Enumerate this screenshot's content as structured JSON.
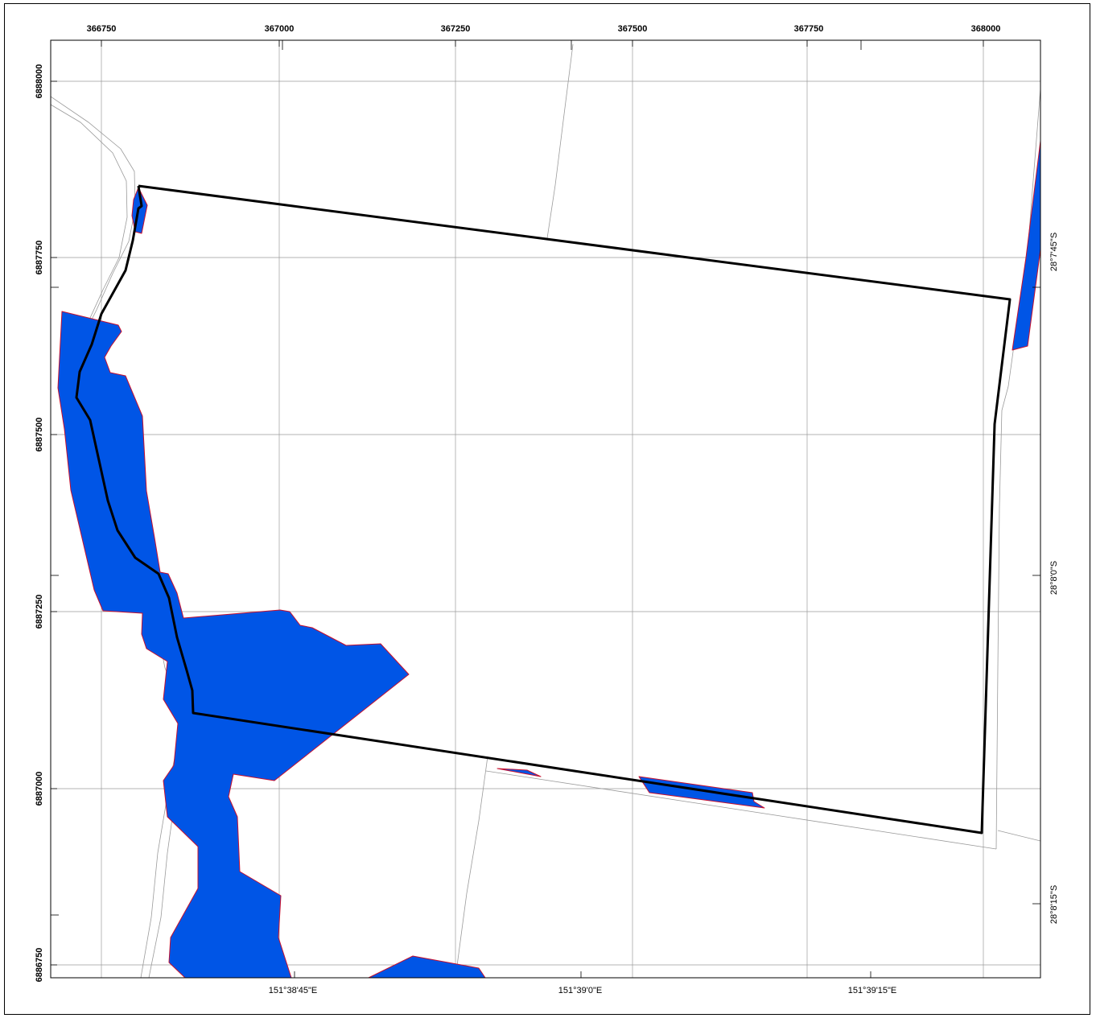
{
  "map": {
    "colors": {
      "water_fill": "#0055e6",
      "water_outline": "#c8102e",
      "boundary": "#000000",
      "grid": "#9a9a9a",
      "road": "#9a9a9a",
      "frame": "#000000",
      "background": "#ffffff"
    },
    "easting_labels": [
      "366750",
      "367000",
      "367250",
      "367500",
      "367750",
      "368000"
    ],
    "northing_labels": [
      "6888000",
      "6887750",
      "6887500",
      "6887250",
      "6887000",
      "6886750"
    ],
    "longitude_labels": [
      "151°38'45\"E",
      "151°39'0\"E",
      "151°39'15\"E"
    ],
    "latitude_labels": [
      "28°7'45\"S",
      "28°8'0\"S",
      "28°8'15\"S"
    ]
  }
}
